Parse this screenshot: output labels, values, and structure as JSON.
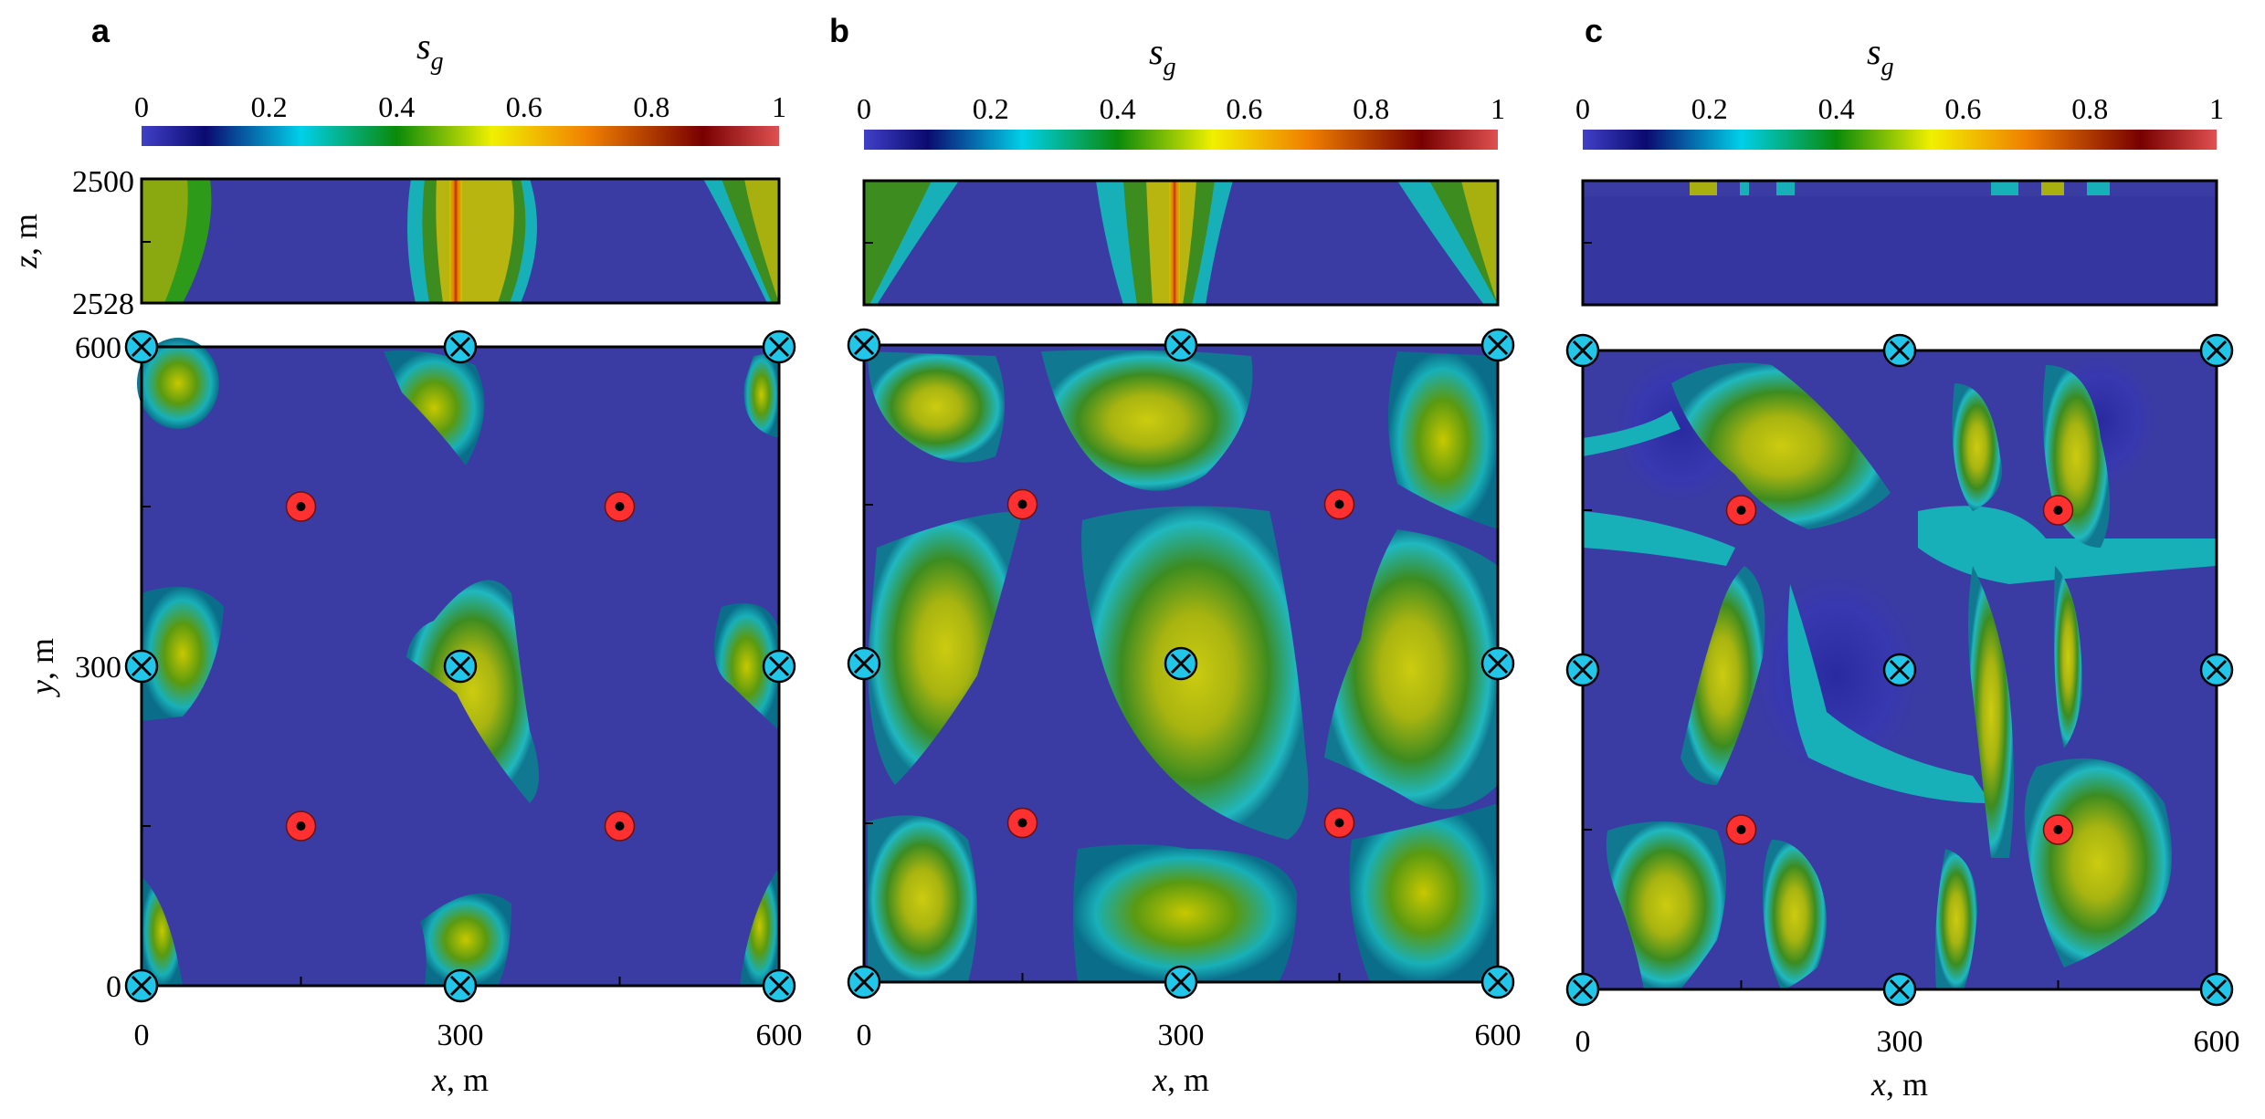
{
  "panels": [
    {
      "letter": "a",
      "colorbar_symbol": "s",
      "colorbar_subscript": "g",
      "colorbar_ticks": [
        "0",
        "0.2",
        "0.4",
        "0.6",
        "0.8",
        "1"
      ],
      "z_ticks": [
        "2500",
        "2528"
      ],
      "z_label_var": "z",
      "z_label_unit": ", m",
      "y_ticks": [
        "600",
        "300",
        "0"
      ],
      "y_label_var": "y",
      "y_label_unit": ", m",
      "x_ticks": [
        "0",
        "300",
        "600"
      ],
      "x_label_var": "x",
      "x_label_unit": ", m"
    },
    {
      "letter": "b",
      "colorbar_symbol": "s",
      "colorbar_subscript": "g",
      "colorbar_ticks": [
        "0",
        "0.2",
        "0.4",
        "0.6",
        "0.8",
        "1"
      ],
      "x_ticks": [
        "0",
        "300",
        "600"
      ],
      "x_label_var": "x",
      "x_label_unit": ", m"
    },
    {
      "letter": "c",
      "colorbar_symbol": "s",
      "colorbar_subscript": "g",
      "colorbar_ticks": [
        "0",
        "0.2",
        "0.4",
        "0.6",
        "0.8",
        "1"
      ],
      "x_ticks": [
        "0",
        "300",
        "600"
      ],
      "x_label_var": "x",
      "x_label_unit": ", m"
    }
  ],
  "colormap": [
    "#3a3aa8",
    "#0a0a6e",
    "#00c8e6",
    "#0a8a0a",
    "#dede00",
    "#e67800",
    "#780000",
    "#dc4646"
  ],
  "colors": {
    "background_phase": "#3b3ba4",
    "injector_well": "#ff3030",
    "producer_well": "#22c6e8"
  },
  "wells": {
    "injectors": [
      [
        150,
        450
      ],
      [
        450,
        450
      ],
      [
        150,
        150
      ],
      [
        450,
        150
      ]
    ],
    "producers": [
      [
        0,
        600
      ],
      [
        300,
        600
      ],
      [
        600,
        600
      ],
      [
        0,
        300
      ],
      [
        300,
        300
      ],
      [
        600,
        300
      ],
      [
        0,
        0
      ],
      [
        300,
        0
      ],
      [
        600,
        0
      ]
    ]
  }
}
